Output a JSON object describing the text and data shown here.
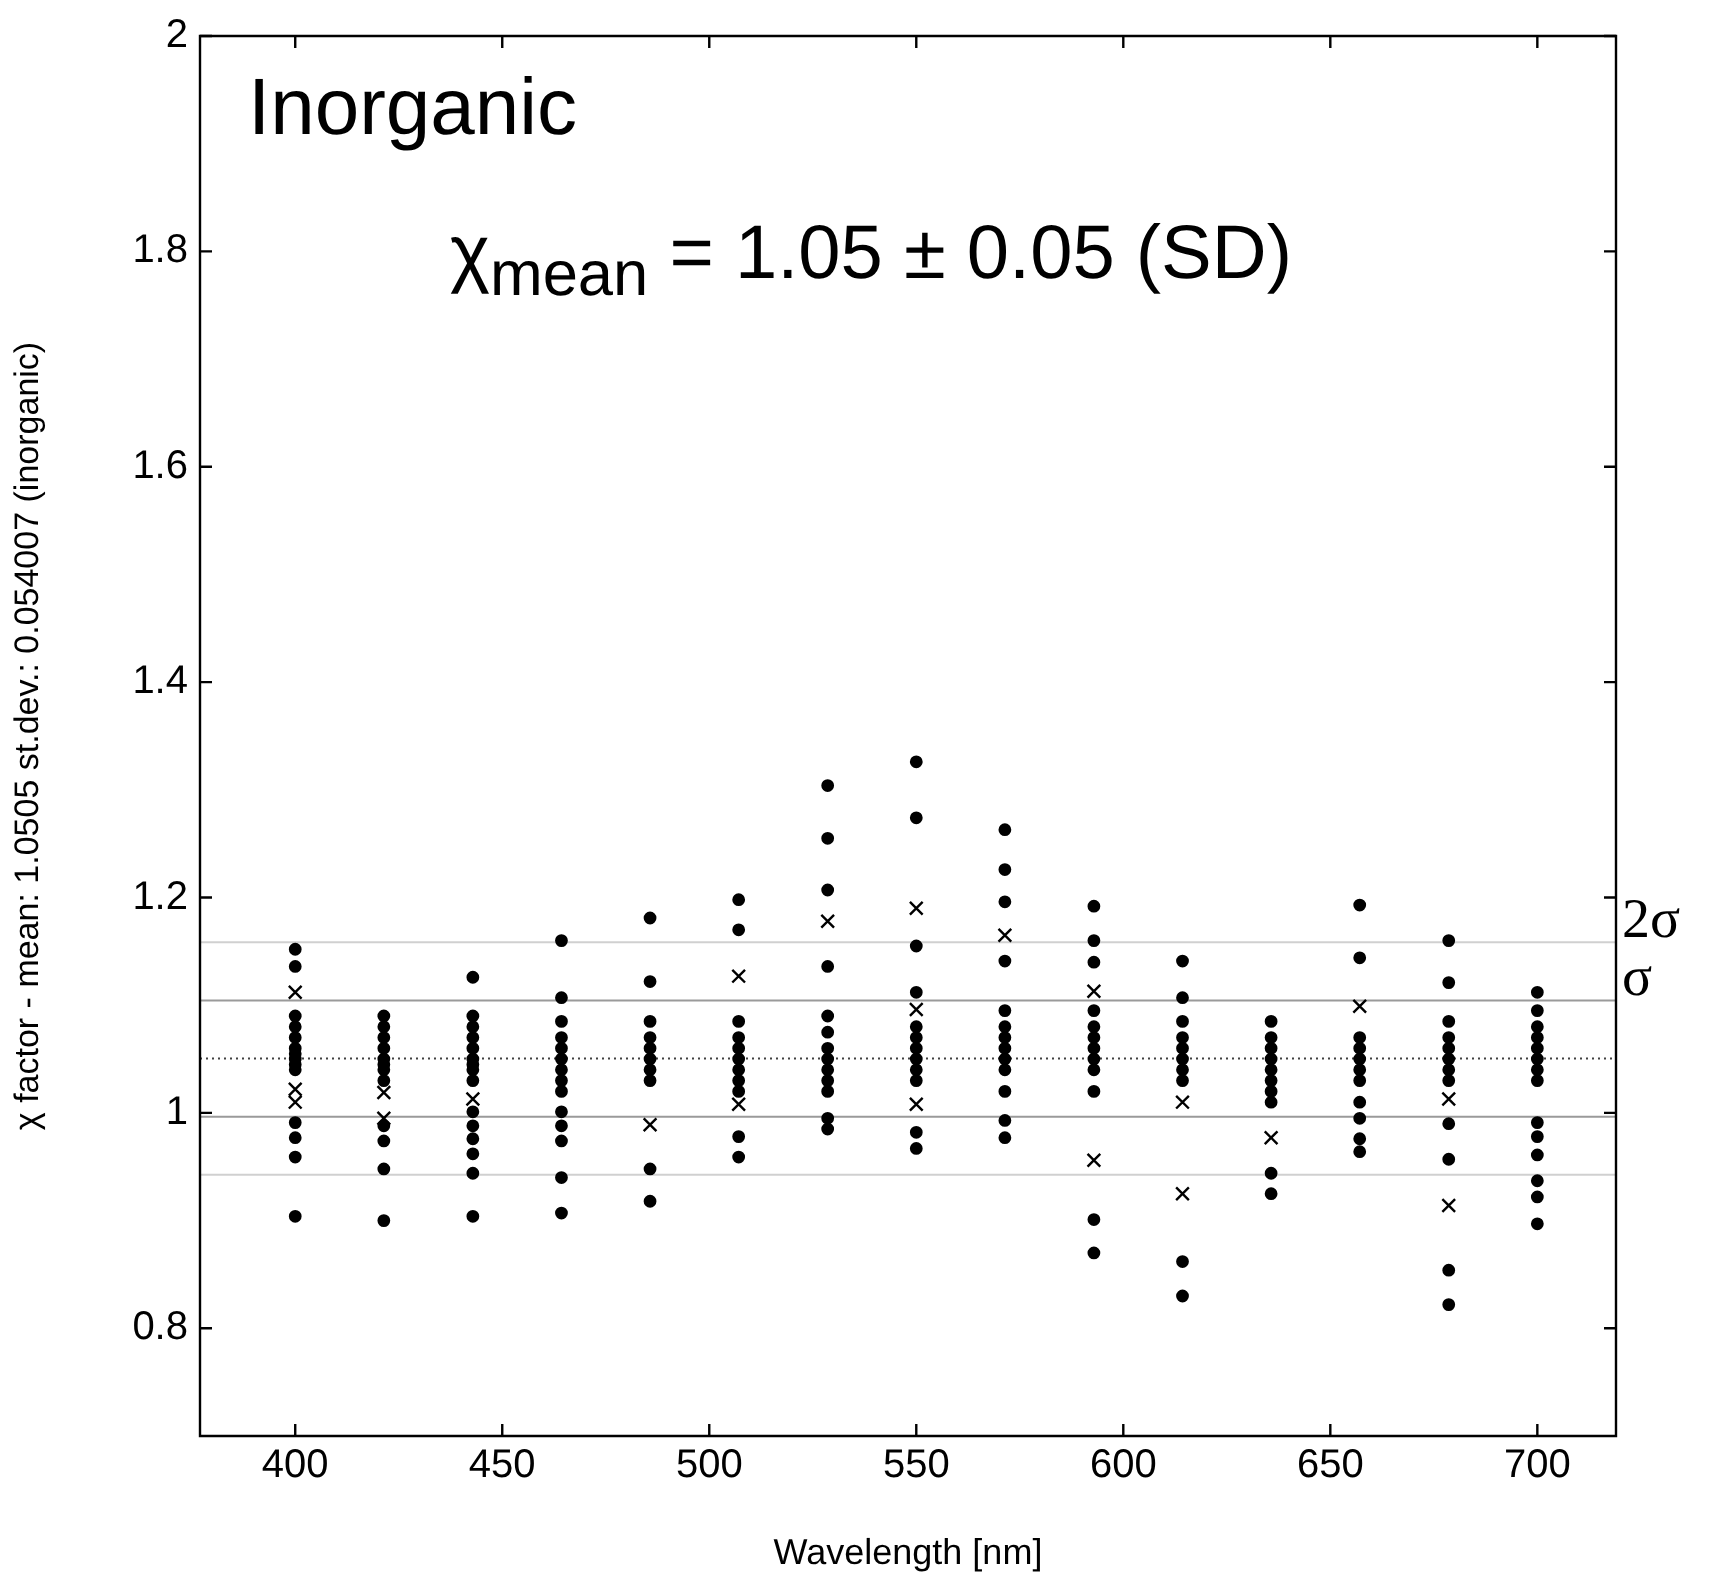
{
  "chart_data": {
    "type": "scatter",
    "xlabel": "Wavelength [nm]",
    "ylabel": "χ factor - mean: 1.0505 st.dev.: 0.054007 (inorganic)",
    "annotations": [
      "Inorganic",
      "χ$_{mean}$ = 1.05 ± 0.05 (SD)"
    ],
    "xlim": [
      377,
      719
    ],
    "xticks": [
      400,
      450,
      500,
      550,
      600,
      650,
      700
    ],
    "ylim": [
      0.7,
      2
    ],
    "yticks": [
      0.8,
      1,
      1.2,
      1.4,
      1.6,
      1.8,
      2
    ],
    "grid": false,
    "legend": false,
    "marker": "circle",
    "ref_lines": [
      {
        "axis": "y",
        "value": 1.0505,
        "label": null,
        "color": "#404040",
        "line_style": "dotted"
      },
      {
        "axis": "y",
        "value": 1.1045,
        "label": "σ",
        "color": "#9a9a9a"
      },
      {
        "axis": "y",
        "value": 0.9965,
        "label": null,
        "color": "#9a9a9a"
      },
      {
        "axis": "y",
        "value": 1.1585,
        "label": "2σ",
        "color": "#d0d0d0"
      },
      {
        "axis": "y",
        "value": 0.9425,
        "label": null,
        "color": "#d0d0d0"
      }
    ],
    "series": [
      {
        "color": "#000000",
        "x": [
          400,
          400,
          400,
          400,
          400,
          400,
          400,
          400,
          400,
          400,
          400,
          400,
          400,
          400,
          421.4,
          421.4,
          421.4,
          421.4,
          421.4,
          421.4,
          421.4,
          421.4,
          421.4,
          421.4,
          421.4,
          421.4,
          442.9,
          442.9,
          442.9,
          442.9,
          442.9,
          442.9,
          442.9,
          442.9,
          442.9,
          442.9,
          442.9,
          442.9,
          442.9,
          442.9,
          442.9,
          464.3,
          464.3,
          464.3,
          464.3,
          464.3,
          464.3,
          464.3,
          464.3,
          464.3,
          464.3,
          464.3,
          464.3,
          464.3,
          464.3,
          485.7,
          485.7,
          485.7,
          485.7,
          485.7,
          485.7,
          485.7,
          485.7,
          485.7,
          485.7,
          507.1,
          507.1,
          507.1,
          507.1,
          507.1,
          507.1,
          507.1,
          507.1,
          507.1,
          507.1,
          507.1,
          528.6,
          528.6,
          528.6,
          528.6,
          528.6,
          528.6,
          528.6,
          528.6,
          528.6,
          528.6,
          528.6,
          528.6,
          528.6,
          550,
          550,
          550,
          550,
          550,
          550,
          550,
          550,
          550,
          550,
          550,
          550,
          571.4,
          571.4,
          571.4,
          571.4,
          571.4,
          571.4,
          571.4,
          571.4,
          571.4,
          571.4,
          571.4,
          571.4,
          571.4,
          592.9,
          592.9,
          592.9,
          592.9,
          592.9,
          592.9,
          592.9,
          592.9,
          592.9,
          592.9,
          592.9,
          592.9,
          614.3,
          614.3,
          614.3,
          614.3,
          614.3,
          614.3,
          614.3,
          614.3,
          614.3,
          614.3,
          635.7,
          635.7,
          635.7,
          635.7,
          635.7,
          635.7,
          635.7,
          635.7,
          635.7,
          635.7,
          657.1,
          657.1,
          657.1,
          657.1,
          657.1,
          657.1,
          657.1,
          657.1,
          657.1,
          657.1,
          657.1,
          678.6,
          678.6,
          678.6,
          678.6,
          678.6,
          678.6,
          678.6,
          678.6,
          678.6,
          678.6,
          678.6,
          678.6,
          700,
          700,
          700,
          700,
          700,
          700,
          700,
          700,
          700,
          700,
          700,
          700,
          700,
          700
        ],
        "values": [
          1.152,
          1.136,
          1.09,
          1.08,
          1.07,
          1.06,
          1.055,
          1.05,
          1.045,
          1.04,
          0.991,
          0.977,
          0.959,
          0.904,
          1.09,
          1.08,
          1.07,
          1.06,
          1.05,
          1.045,
          1.04,
          1.03,
          0.988,
          0.974,
          0.948,
          0.9,
          1.126,
          1.09,
          1.08,
          1.07,
          1.06,
          1.05,
          1.045,
          1.04,
          1.03,
          1.001,
          0.988,
          0.976,
          0.962,
          0.944,
          0.904,
          1.16,
          1.107,
          1.085,
          1.07,
          1.06,
          1.05,
          1.04,
          1.03,
          1.02,
          1.001,
          0.988,
          0.974,
          0.94,
          0.907,
          1.181,
          1.122,
          1.085,
          1.07,
          1.06,
          1.05,
          1.04,
          1.03,
          0.948,
          0.918,
          1.198,
          1.17,
          1.085,
          1.07,
          1.06,
          1.05,
          1.04,
          1.03,
          1.02,
          0.978,
          0.959,
          1.304,
          1.255,
          1.207,
          1.136,
          1.09,
          1.075,
          1.06,
          1.05,
          1.04,
          1.03,
          1.02,
          0.995,
          0.985,
          1.326,
          1.274,
          1.155,
          1.112,
          1.08,
          1.07,
          1.06,
          1.05,
          1.04,
          1.03,
          0.982,
          0.967,
          1.263,
          1.226,
          1.196,
          1.141,
          1.095,
          1.08,
          1.07,
          1.06,
          1.05,
          1.04,
          1.02,
          0.993,
          0.977,
          1.192,
          1.16,
          1.14,
          1.095,
          1.08,
          1.07,
          1.06,
          1.05,
          1.04,
          1.02,
          0.901,
          0.87,
          1.141,
          1.107,
          1.085,
          1.07,
          1.06,
          1.05,
          1.04,
          1.03,
          0.862,
          0.83,
          1.085,
          1.07,
          1.06,
          1.05,
          1.04,
          1.03,
          1.02,
          1.01,
          0.944,
          0.925,
          1.193,
          1.144,
          1.07,
          1.06,
          1.05,
          1.04,
          1.03,
          1.01,
          0.995,
          0.976,
          0.964,
          1.16,
          1.121,
          1.085,
          1.07,
          1.06,
          1.05,
          1.04,
          1.03,
          0.99,
          0.957,
          0.854,
          0.822,
          1.112,
          1.095,
          1.08,
          1.07,
          1.06,
          1.05,
          1.04,
          1.03,
          0.991,
          0.978,
          0.961,
          0.937,
          0.922,
          0.897
        ]
      },
      {
        "color": "#000000",
        "marker": "cross",
        "x": [
          400,
          400,
          400,
          421.4,
          421.4,
          442.9,
          485.7,
          507.1,
          507.1,
          528.6,
          550,
          550,
          550,
          571.4,
          592.9,
          592.9,
          614.3,
          614.3,
          635.7,
          657.1,
          678.6,
          678.6
        ],
        "values": [
          1.112,
          1.022,
          1.01,
          1.019,
          0.995,
          1.013,
          0.989,
          1.127,
          1.008,
          1.178,
          1.19,
          1.096,
          1.008,
          1.165,
          1.113,
          0.956,
          1.01,
          0.925,
          0.977,
          1.099,
          1.013,
          0.914
        ]
      }
    ]
  }
}
